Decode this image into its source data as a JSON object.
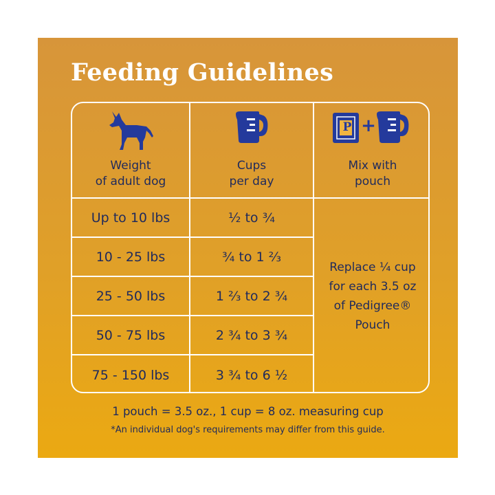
{
  "title": "Feeding Guidelines",
  "headers": {
    "weight": "Weight\nof adult dog",
    "cups": "Cups\nper day",
    "mix": "Mix with\npouch"
  },
  "icons": {
    "weight": "dog-icon",
    "cups": "measuring-cup-icon",
    "mix_pouch": "pouch-icon",
    "mix_plus": "+",
    "mix_pouch_letter": "P",
    "mix_cup": "measuring-cup-icon"
  },
  "rows": [
    {
      "weight": "Up to 10 lbs",
      "cups": "½  to  ¾"
    },
    {
      "weight": "10 - 25 lbs",
      "cups": "¾  to  1 ⅔"
    },
    {
      "weight": "25 - 50 lbs",
      "cups": "1 ⅔  to  2 ¾"
    },
    {
      "weight": "50 - 75 lbs",
      "cups": "2 ¾  to  3 ¾"
    },
    {
      "weight": "75 - 150 lbs",
      "cups": "3 ¾  to  6 ½"
    }
  ],
  "mix_text": "Replace ¼ cup\nfor each 3.5 oz\nof Pedigree®\nPouch",
  "footnote": "1 pouch = 3.5 oz., 1 cup = 8 oz. measuring cup",
  "disclaimer": "*An individual dog's requirements may differ from this guide.",
  "colors": {
    "navy": "#1f2a5c",
    "icon_blue": "#243a9c",
    "white": "#ffffff",
    "gradient_top": "#d7953a",
    "gradient_bottom": "#eba912"
  }
}
